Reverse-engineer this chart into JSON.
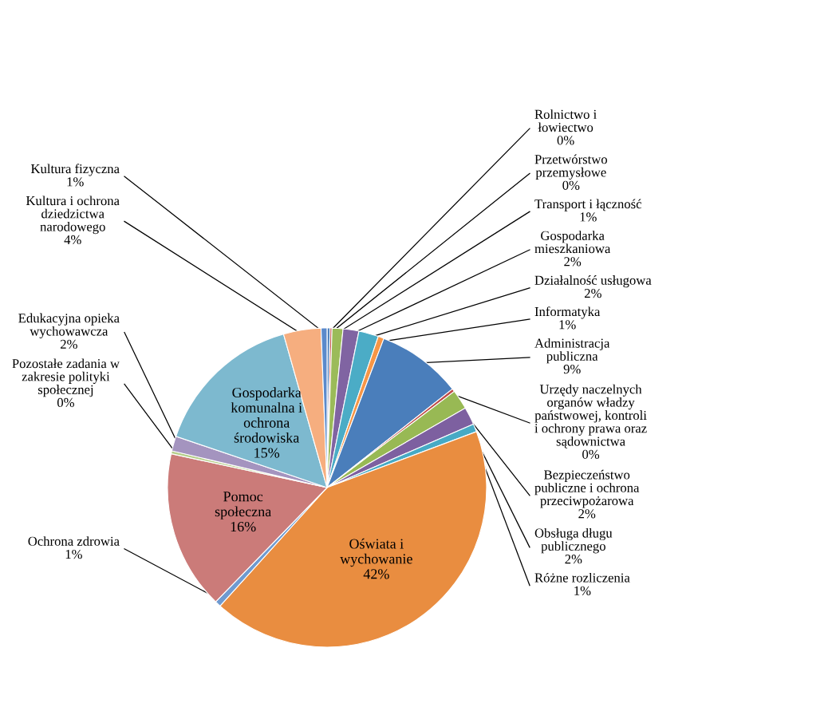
{
  "chart_data": {
    "type": "pie",
    "categories": [
      "Rolnictwo i łowiectwo",
      "Przetwórstwo przemysłowe",
      "Transport i łączność",
      "Gospodarka mieszkaniowa",
      "Działalność usługowa",
      "Informatyka",
      "Administracja publiczna",
      "Urzędy naczelnych organów władzy państwowej, kontroli i ochrony prawa oraz sądownictwa",
      "Bezpieczeństwo publiczne i ochrona przeciwpożarowa",
      "Obsługa długu publicznego",
      "Różne rozliczenia",
      "Oświata i wychowanie",
      "Ochrona zdrowia",
      "Pomoc społeczna",
      "Pozostałe zadania w zakresie polityki społecznej",
      "Edukacyjna opieka wychowawcza",
      "Gospodarka komunalna i ochrona środowiska",
      "Kultura i ochrona dziedzictwa narodowego",
      "Kultura fizyczna"
    ],
    "values": [
      0.3,
      0.2,
      1.1,
      1.6,
      2.0,
      0.6,
      8.6,
      0.3,
      2.0,
      1.8,
      0.8,
      42.4,
      0.6,
      16.1,
      0.3,
      1.5,
      15.4,
      3.8,
      0.6
    ],
    "value_labels": [
      "0%",
      "0%",
      "1%",
      "2%",
      "2%",
      "1%",
      "9%",
      "0%",
      "2%",
      "2%",
      "1%",
      "42%",
      "1%",
      "16%",
      "0%",
      "2%",
      "15%",
      "4%",
      "1%"
    ],
    "colors": [
      "#4f81bd",
      "#c0504d",
      "#9bbb59",
      "#8064a2",
      "#4bacc6",
      "#f79646",
      "#4a7ebb",
      "#be4b48",
      "#98b954",
      "#7d60a0",
      "#46aac5",
      "#e98d40",
      "#6f9ad0",
      "#cb7b79",
      "#b5ce8a",
      "#a494bf",
      "#7db9cf",
      "#f6ae7f",
      "#5b8acb"
    ]
  }
}
